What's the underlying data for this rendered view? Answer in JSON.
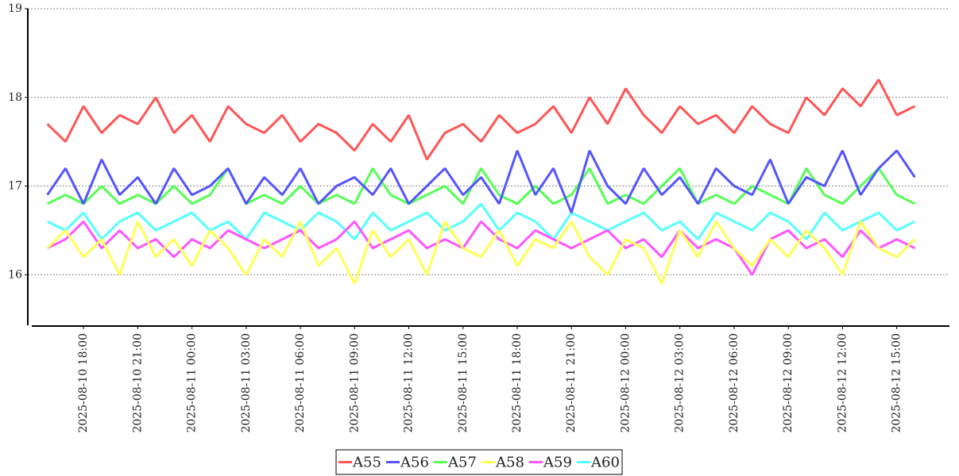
{
  "chart_data": {
    "type": "line",
    "x": [
      "2025-08-10 16:00",
      "2025-08-10 17:00",
      "2025-08-10 18:00",
      "2025-08-10 19:00",
      "2025-08-10 20:00",
      "2025-08-10 21:00",
      "2025-08-10 22:00",
      "2025-08-10 23:00",
      "2025-08-11 00:00",
      "2025-08-11 01:00",
      "2025-08-11 02:00",
      "2025-08-11 03:00",
      "2025-08-11 04:00",
      "2025-08-11 05:00",
      "2025-08-11 06:00",
      "2025-08-11 07:00",
      "2025-08-11 08:00",
      "2025-08-11 09:00",
      "2025-08-11 10:00",
      "2025-08-11 11:00",
      "2025-08-11 12:00",
      "2025-08-11 13:00",
      "2025-08-11 14:00",
      "2025-08-11 15:00",
      "2025-08-11 16:00",
      "2025-08-11 17:00",
      "2025-08-11 18:00",
      "2025-08-11 19:00",
      "2025-08-11 20:00",
      "2025-08-11 21:00",
      "2025-08-11 22:00",
      "2025-08-11 23:00",
      "2025-08-12 00:00",
      "2025-08-12 01:00",
      "2025-08-12 02:00",
      "2025-08-12 03:00",
      "2025-08-12 04:00",
      "2025-08-12 05:00",
      "2025-08-12 06:00",
      "2025-08-12 07:00",
      "2025-08-12 08:00",
      "2025-08-12 09:00",
      "2025-08-12 10:00",
      "2025-08-12 11:00",
      "2025-08-12 12:00",
      "2025-08-12 13:00",
      "2025-08-12 14:00",
      "2025-08-12 15:00",
      "2025-08-12 16:00"
    ],
    "series": [
      {
        "name": "A55",
        "color": "#ff5555",
        "values": [
          17.7,
          17.5,
          17.9,
          17.6,
          17.8,
          17.7,
          18.0,
          17.6,
          17.8,
          17.5,
          17.9,
          17.7,
          17.6,
          17.8,
          17.5,
          17.7,
          17.6,
          17.4,
          17.7,
          17.5,
          17.8,
          17.3,
          17.6,
          17.7,
          17.5,
          17.8,
          17.6,
          17.7,
          17.9,
          17.6,
          18.0,
          17.7,
          18.1,
          17.8,
          17.6,
          17.9,
          17.7,
          17.8,
          17.6,
          17.9,
          17.7,
          17.6,
          18.0,
          17.8,
          18.1,
          17.9,
          18.2,
          17.8,
          17.9
        ]
      },
      {
        "name": "A56",
        "color": "#5555ff",
        "values": [
          16.9,
          17.2,
          16.8,
          17.3,
          16.9,
          17.1,
          16.8,
          17.2,
          16.9,
          17.0,
          17.2,
          16.8,
          17.1,
          16.9,
          17.2,
          16.8,
          17.0,
          17.1,
          16.9,
          17.2,
          16.8,
          17.0,
          17.2,
          16.9,
          17.1,
          16.8,
          17.4,
          16.9,
          17.2,
          16.7,
          17.4,
          17.0,
          16.8,
          17.2,
          16.9,
          17.1,
          16.8,
          17.2,
          17.0,
          16.9,
          17.3,
          16.8,
          17.1,
          17.0,
          17.4,
          16.9,
          17.2,
          17.4,
          17.1
        ]
      },
      {
        "name": "A57",
        "color": "#55ff55",
        "values": [
          16.8,
          16.9,
          16.8,
          17.0,
          16.8,
          16.9,
          16.8,
          17.0,
          16.8,
          16.9,
          17.2,
          16.8,
          16.9,
          16.8,
          17.0,
          16.8,
          16.9,
          16.8,
          17.2,
          16.9,
          16.8,
          16.9,
          17.0,
          16.8,
          17.2,
          16.9,
          16.8,
          17.0,
          16.8,
          16.9,
          17.2,
          16.8,
          16.9,
          16.8,
          17.0,
          17.2,
          16.8,
          16.9,
          16.8,
          17.0,
          16.9,
          16.8,
          17.2,
          16.9,
          16.8,
          17.0,
          17.2,
          16.9,
          16.8
        ]
      },
      {
        "name": "A58",
        "color": "#ffff55",
        "values": [
          16.3,
          16.5,
          16.2,
          16.4,
          16.0,
          16.6,
          16.2,
          16.4,
          16.1,
          16.5,
          16.3,
          16.0,
          16.4,
          16.2,
          16.6,
          16.1,
          16.3,
          15.9,
          16.5,
          16.2,
          16.4,
          16.0,
          16.6,
          16.3,
          16.2,
          16.5,
          16.1,
          16.4,
          16.3,
          16.6,
          16.2,
          16.0,
          16.4,
          16.3,
          15.9,
          16.5,
          16.2,
          16.6,
          16.3,
          16.1,
          16.4,
          16.2,
          16.5,
          16.3,
          16.0,
          16.6,
          16.3,
          16.2,
          16.4
        ]
      },
      {
        "name": "A59",
        "color": "#ff55ff",
        "values": [
          16.3,
          16.4,
          16.6,
          16.3,
          16.5,
          16.3,
          16.4,
          16.2,
          16.4,
          16.3,
          16.5,
          16.4,
          16.3,
          16.4,
          16.5,
          16.3,
          16.4,
          16.6,
          16.3,
          16.4,
          16.5,
          16.3,
          16.4,
          16.3,
          16.6,
          16.4,
          16.3,
          16.5,
          16.4,
          16.3,
          16.4,
          16.5,
          16.3,
          16.4,
          16.2,
          16.5,
          16.3,
          16.4,
          16.3,
          16.0,
          16.4,
          16.5,
          16.3,
          16.4,
          16.2,
          16.5,
          16.3,
          16.4,
          16.3
        ]
      },
      {
        "name": "A60",
        "color": "#55ffff",
        "values": [
          16.6,
          16.5,
          16.7,
          16.4,
          16.6,
          16.7,
          16.5,
          16.6,
          16.7,
          16.5,
          16.6,
          16.4,
          16.7,
          16.6,
          16.5,
          16.7,
          16.6,
          16.4,
          16.7,
          16.5,
          16.6,
          16.7,
          16.5,
          16.6,
          16.8,
          16.5,
          16.7,
          16.6,
          16.4,
          16.7,
          16.6,
          16.5,
          16.6,
          16.7,
          16.5,
          16.6,
          16.4,
          16.7,
          16.6,
          16.5,
          16.7,
          16.6,
          16.4,
          16.7,
          16.5,
          16.6,
          16.7,
          16.5,
          16.6
        ]
      }
    ],
    "ylim": [
      15.43,
      19
    ],
    "yticks": [
      16,
      17,
      18,
      19
    ],
    "xlim": [
      "2025-08-10 14:55",
      "2025-08-12 17:55"
    ],
    "xticks": [
      "2025-08-10 18:00",
      "2025-08-10 21:00",
      "2025-08-11 00:00",
      "2025-08-11 03:00",
      "2025-08-11 06:00",
      "2025-08-11 09:00",
      "2025-08-11 12:00",
      "2025-08-11 15:00",
      "2025-08-11 18:00",
      "2025-08-11 21:00",
      "2025-08-12 00:00",
      "2025-08-12 03:00",
      "2025-08-12 06:00",
      "2025-08-12 09:00",
      "2025-08-12 12:00",
      "2025-08-12 15:00"
    ],
    "grid": true,
    "legend": "bottom"
  }
}
